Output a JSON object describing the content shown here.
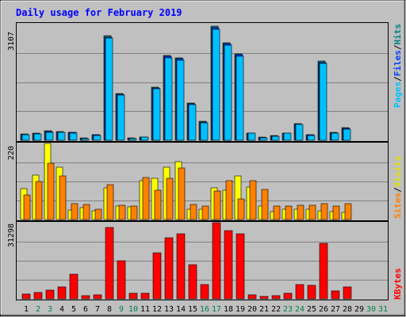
{
  "colors": {
    "background": "#C0C0C0",
    "frame": "#000000",
    "title": "#0000FF",
    "pages": "#00C0FF",
    "files": "#0040FF",
    "hits": "#008080",
    "visits": "#FFFF00",
    "sites": "#FF8000",
    "kbytes": "#FF0000",
    "weekday_label": "#000000",
    "weekend_label": "#00804C",
    "gridline": "#808080"
  },
  "title": "Daily usage for February 2019",
  "chart_data": [
    {
      "type": "bar",
      "title": "Daily usage for February 2019",
      "panel": "hits-files-pages",
      "ylabel_parts": [
        "Pages",
        "/",
        "Files",
        "/",
        "Hits"
      ],
      "ytick": "3107",
      "ylim": [
        0,
        3107
      ],
      "grid": true,
      "categories": [
        "1",
        "2",
        "3",
        "4",
        "5",
        "6",
        "7",
        "8",
        "9",
        "10",
        "11",
        "12",
        "13",
        "14",
        "15",
        "16",
        "17",
        "18",
        "19",
        "20",
        "21",
        "22",
        "23",
        "24",
        "25",
        "26",
        "27",
        "28",
        "29",
        "30",
        "31"
      ],
      "series": [
        {
          "name": "Hits",
          "values": [
            160,
            190,
            250,
            240,
            220,
            60,
            150,
            2780,
            1250,
            60,
            90,
            1420,
            2270,
            2200,
            1000,
            500,
            3050,
            2600,
            2310,
            200,
            80,
            120,
            200,
            450,
            150,
            2120,
            220,
            330,
            0,
            0,
            0
          ]
        },
        {
          "name": "Files",
          "values": [
            150,
            170,
            230,
            220,
            210,
            50,
            140,
            2750,
            1230,
            50,
            80,
            1400,
            2230,
            2170,
            980,
            480,
            3000,
            2570,
            2280,
            190,
            70,
            110,
            190,
            430,
            140,
            2080,
            200,
            310,
            0,
            0,
            0
          ]
        },
        {
          "name": "Pages",
          "values": [
            140,
            160,
            220,
            210,
            200,
            45,
            130,
            2720,
            1210,
            45,
            75,
            1380,
            2200,
            2140,
            960,
            470,
            2950,
            2540,
            2250,
            180,
            65,
            100,
            180,
            420,
            130,
            2050,
            190,
            300,
            0,
            0,
            0
          ]
        }
      ]
    },
    {
      "type": "bar",
      "panel": "visits-sites",
      "ylabel_parts": [
        "Sites",
        "/",
        "Visits"
      ],
      "ytick": "220",
      "ylim": [
        0,
        220
      ],
      "grid": true,
      "categories": [
        "1",
        "2",
        "3",
        "4",
        "5",
        "6",
        "7",
        "8",
        "9",
        "10",
        "11",
        "12",
        "13",
        "14",
        "15",
        "16",
        "17",
        "18",
        "19",
        "20",
        "21",
        "22",
        "23",
        "24",
        "25",
        "26",
        "27",
        "28",
        "29",
        "30",
        "31"
      ],
      "series": [
        {
          "name": "Visits",
          "values": [
            90,
            128,
            220,
            152,
            28,
            35,
            25,
            92,
            40,
            36,
            112,
            120,
            152,
            168,
            30,
            30,
            92,
            85,
            125,
            95,
            40,
            24,
            30,
            30,
            30,
            25,
            24,
            20,
            0,
            0,
            0
          ]
        },
        {
          "name": "Sites",
          "values": [
            70,
            110,
            162,
            125,
            45,
            44,
            30,
            100,
            42,
            40,
            122,
            85,
            120,
            148,
            43,
            38,
            82,
            113,
            60,
            112,
            86,
            40,
            40,
            42,
            42,
            45,
            38,
            45,
            0,
            0,
            0
          ]
        }
      ]
    },
    {
      "type": "bar",
      "panel": "kbytes",
      "ylabel_parts": [
        "KBytes"
      ],
      "ytick": "31298",
      "ylim": [
        0,
        31298
      ],
      "grid": true,
      "categories": [
        "1",
        "2",
        "3",
        "4",
        "5",
        "6",
        "7",
        "8",
        "9",
        "10",
        "11",
        "12",
        "13",
        "14",
        "15",
        "16",
        "17",
        "18",
        "19",
        "20",
        "21",
        "22",
        "23",
        "24",
        "25",
        "26",
        "27",
        "28",
        "29",
        "30",
        "31"
      ],
      "series": [
        {
          "name": "KBytes",
          "values": [
            2000,
            2500,
            3500,
            5000,
            10000,
            1300,
            1700,
            29500,
            15500,
            2400,
            2400,
            19000,
            25000,
            26800,
            14000,
            5800,
            31298,
            28000,
            26800,
            1600,
            1100,
            1400,
            2400,
            5800,
            5400,
            22700,
            3400,
            5000,
            0,
            0,
            0
          ]
        }
      ]
    }
  ],
  "day_labels": [
    {
      "text": "1",
      "weekend": false
    },
    {
      "text": "2",
      "weekend": true
    },
    {
      "text": "3",
      "weekend": true
    },
    {
      "text": "4",
      "weekend": false
    },
    {
      "text": "5",
      "weekend": false
    },
    {
      "text": "6",
      "weekend": false
    },
    {
      "text": "7",
      "weekend": false
    },
    {
      "text": "8",
      "weekend": false
    },
    {
      "text": "9",
      "weekend": true
    },
    {
      "text": "10",
      "weekend": true
    },
    {
      "text": "11",
      "weekend": false
    },
    {
      "text": "12",
      "weekend": false
    },
    {
      "text": "13",
      "weekend": false
    },
    {
      "text": "14",
      "weekend": false
    },
    {
      "text": "15",
      "weekend": false
    },
    {
      "text": "16",
      "weekend": true
    },
    {
      "text": "17",
      "weekend": true
    },
    {
      "text": "18",
      "weekend": false
    },
    {
      "text": "19",
      "weekend": false
    },
    {
      "text": "20",
      "weekend": false
    },
    {
      "text": "21",
      "weekend": false
    },
    {
      "text": "22",
      "weekend": false
    },
    {
      "text": "23",
      "weekend": true
    },
    {
      "text": "24",
      "weekend": true
    },
    {
      "text": "25",
      "weekend": false
    },
    {
      "text": "26",
      "weekend": false
    },
    {
      "text": "27",
      "weekend": false
    },
    {
      "text": "28",
      "weekend": false
    },
    {
      "text": "29",
      "weekend": false
    },
    {
      "text": "30",
      "weekend": true
    },
    {
      "text": "31",
      "weekend": true
    }
  ]
}
